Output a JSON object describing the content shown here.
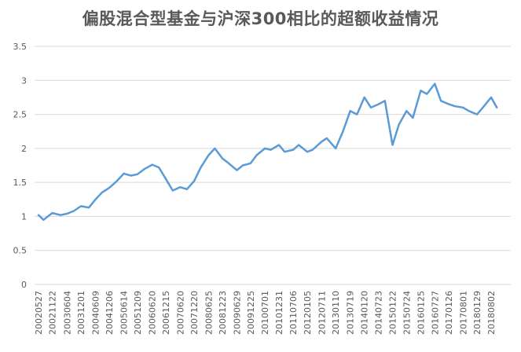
{
  "chart_data": {
    "type": "line",
    "title": "偏股混合型基金与沪深300相比的超额收益情况",
    "xlabel": "",
    "ylabel": "",
    "ylim": [
      0,
      3.5
    ],
    "yticks": [
      "0",
      "0.5",
      "1",
      "1.5",
      "2",
      "2.5",
      "3",
      "3.5"
    ],
    "grid": true,
    "legend": "none",
    "x_tick_labels": [
      "20020527",
      "20021122",
      "20030604",
      "20031201",
      "20040609",
      "20041206",
      "20050614",
      "20051209",
      "20060620",
      "20061215",
      "20070620",
      "20071220",
      "20080625",
      "20081223",
      "20090629",
      "20091225",
      "20100701",
      "20101231",
      "20110706",
      "20120105",
      "20120711",
      "20130110",
      "20130719",
      "20140120",
      "20140723",
      "20150122",
      "20150724",
      "20160125",
      "20160727",
      "20170126",
      "20170801",
      "20180129",
      "20180802"
    ],
    "x": [
      "20020527",
      "20020801",
      "20021122",
      "20030310",
      "20030604",
      "20030901",
      "20031201",
      "20040315",
      "20040609",
      "20040901",
      "20041206",
      "20050315",
      "20050614",
      "20050915",
      "20051209",
      "20060315",
      "20060620",
      "20060915",
      "20061215",
      "20070315",
      "20070620",
      "20070915",
      "20071220",
      "20080315",
      "20080625",
      "20080915",
      "20081223",
      "20090315",
      "20090629",
      "20090915",
      "20091225",
      "20100315",
      "20100701",
      "20100915",
      "20101231",
      "20110315",
      "20110706",
      "20110915",
      "20120105",
      "20120315",
      "20120711",
      "20120915",
      "20130110",
      "20130415",
      "20130719",
      "20131015",
      "20140120",
      "20140415",
      "20140723",
      "20141015",
      "20150122",
      "20150415",
      "20150724",
      "20151015",
      "20160125",
      "20160415",
      "20160727",
      "20161015",
      "20170126",
      "20170415",
      "20170801",
      "20171015",
      "20180129",
      "20180415",
      "20180802",
      "20181015"
    ],
    "series": [
      {
        "values": [
          1.02,
          0.95,
          1.05,
          1.02,
          1.04,
          1.08,
          1.15,
          1.13,
          1.25,
          1.35,
          1.42,
          1.52,
          1.63,
          1.6,
          1.62,
          1.7,
          1.76,
          1.72,
          1.55,
          1.38,
          1.43,
          1.4,
          1.52,
          1.72,
          1.9,
          2.0,
          1.85,
          1.78,
          1.68,
          1.75,
          1.78,
          1.9,
          2.0,
          1.98,
          2.05,
          1.95,
          1.98,
          2.05,
          1.95,
          1.98,
          2.1,
          2.15,
          2.0,
          2.25,
          2.55,
          2.5,
          2.75,
          2.6,
          2.65,
          2.7,
          2.05,
          2.35,
          2.55,
          2.45,
          2.85,
          2.8,
          2.95,
          2.7,
          2.65,
          2.62,
          2.6,
          2.55,
          2.5,
          2.6,
          2.75,
          2.6
        ]
      }
    ],
    "line_color": "#5b9bd5",
    "grid_color": "#d9d9d9"
  }
}
